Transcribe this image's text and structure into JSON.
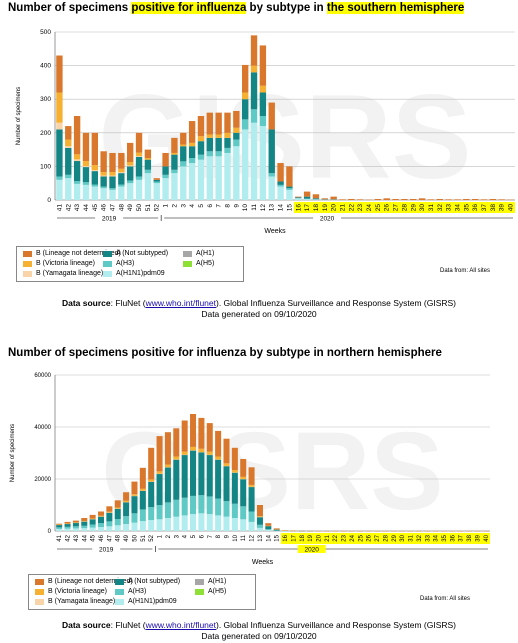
{
  "colors": {
    "b_lineage_not_determined": "#d9772c",
    "b_victoria": "#f6b132",
    "b_yamagata": "#f9d4a8",
    "a_not_subtyped": "#138585",
    "a_h3": "#5fc9c5",
    "a_h1n1pdm09": "#b1ecee",
    "a_h1": "#a6a6a6",
    "a_h5": "#8ee037",
    "highlight": "#ffff00"
  },
  "charts": [
    {
      "title_pre": "Number of specimens ",
      "title_hl1": "positive for influenza",
      "title_mid": " by subtype in ",
      "title_hl2": "the southern hemisphere",
      "title_post": "",
      "watermark": "GISRS",
      "data_from": "Data from: All sites",
      "year_left": "2019",
      "year_right": "2020",
      "xlabel": "Weeks",
      "source_label": "Data source",
      "source_pre": ": FluNet (",
      "source_link": "www.who.int/flunet",
      "source_post": "). Global Influenza Surveillance and Response System (GISRS)",
      "generated": "Data generated on 09/10/2020"
    },
    {
      "title_pre": "Number of specimens positive for influenza by subtype in northern hemisphere",
      "title_hl1": "",
      "title_mid": "",
      "title_hl2": "",
      "title_post": "",
      "watermark": "GISRS",
      "data_from": "Data from: All sites",
      "year_left": "2019",
      "year_right": "2020",
      "xlabel": "Weeks",
      "source_label": "Data source",
      "source_pre": ": FluNet (",
      "source_link": "www.who.int/flunet",
      "source_post": "). Global Influenza Surveillance and Response System (GISRS)",
      "generated": "Data generated on 09/10/2020"
    }
  ],
  "legend": [
    {
      "key": "b_lineage_not_determined",
      "label": "B (Lineage not determined)"
    },
    {
      "key": "a_not_subtyped",
      "label": "A (Not subtyped)"
    },
    {
      "key": "a_h1",
      "label": "A(H1)"
    },
    {
      "key": "b_victoria",
      "label": "B (Victoria lineage)"
    },
    {
      "key": "a_h3",
      "label": "A(H3)"
    },
    {
      "key": "a_h5",
      "label": "A(H5)"
    },
    {
      "key": "b_yamagata",
      "label": "B (Yamagata lineage)"
    },
    {
      "key": "a_h1n1pdm09",
      "label": "A(H1N1)pdm09"
    }
  ],
  "chart_data": [
    {
      "type": "bar",
      "stacked": true,
      "xlabel": "Weeks",
      "ylabel": "Number of specimens",
      "ylim": [
        0,
        500
      ],
      "yticks": [
        0,
        100,
        200,
        300,
        400,
        500
      ],
      "highlight_from_week": "16",
      "highlight_to_week": "40",
      "categories": [
        "41",
        "42",
        "43",
        "44",
        "45",
        "46",
        "47",
        "48",
        "49",
        "50",
        "51",
        "52",
        "1",
        "2",
        "3",
        "4",
        "5",
        "6",
        "7",
        "8",
        "9",
        "10",
        "11",
        "12",
        "13",
        "14",
        "15",
        "16",
        "17",
        "18",
        "19",
        "20",
        "21",
        "22",
        "23",
        "24",
        "25",
        "26",
        "27",
        "28",
        "29",
        "30",
        "31",
        "32",
        "33",
        "34",
        "35",
        "36",
        "37",
        "38",
        "39",
        "40"
      ],
      "series": [
        {
          "name": "A(H1N1)pdm09",
          "key": "a_h1n1pdm09",
          "values": [
            60,
            65,
            48,
            45,
            40,
            35,
            30,
            40,
            50,
            60,
            80,
            50,
            65,
            80,
            100,
            110,
            120,
            130,
            130,
            140,
            160,
            210,
            230,
            220,
            70,
            40,
            30,
            5,
            3,
            2,
            1,
            1,
            0,
            0,
            0,
            0,
            0,
            0,
            0,
            0,
            0,
            0,
            0,
            0,
            0,
            0,
            0,
            0,
            0,
            0,
            0,
            0
          ]
        },
        {
          "name": "A(H3)",
          "key": "a_h3",
          "values": [
            10,
            10,
            8,
            8,
            6,
            5,
            5,
            6,
            8,
            10,
            10,
            5,
            10,
            10,
            15,
            15,
            15,
            15,
            15,
            15,
            20,
            30,
            40,
            30,
            10,
            5,
            5,
            1,
            1,
            0,
            0,
            0,
            0,
            0,
            0,
            0,
            0,
            0,
            0,
            0,
            0,
            0,
            0,
            0,
            0,
            0,
            0,
            0,
            0,
            0,
            0,
            0
          ]
        },
        {
          "name": "A (Not subtyped)",
          "key": "a_not_subtyped",
          "values": [
            140,
            80,
            60,
            45,
            40,
            30,
            35,
            34,
            42,
            58,
            30,
            5,
            25,
            45,
            45,
            35,
            40,
            40,
            40,
            30,
            20,
            60,
            110,
            70,
            130,
            10,
            5,
            2,
            6,
            3,
            1,
            1,
            0,
            0,
            0,
            0,
            0,
            0,
            0,
            0,
            0,
            0,
            0,
            0,
            0,
            0,
            0,
            0,
            0,
            0,
            0,
            0
          ]
        },
        {
          "name": "A(H1)",
          "key": "a_h1",
          "values": [
            0,
            0,
            0,
            0,
            0,
            0,
            0,
            0,
            0,
            0,
            0,
            0,
            0,
            0,
            0,
            0,
            0,
            0,
            0,
            0,
            0,
            0,
            0,
            0,
            0,
            0,
            0,
            0,
            0,
            0,
            0,
            0,
            0,
            0,
            0,
            0,
            0,
            0,
            0,
            0,
            0,
            0,
            0,
            0,
            0,
            0,
            0,
            0,
            0,
            0,
            0,
            0
          ]
        },
        {
          "name": "A(H5)",
          "key": "a_h5",
          "values": [
            0,
            0,
            0,
            0,
            0,
            0,
            0,
            0,
            0,
            0,
            0,
            0,
            0,
            0,
            0,
            0,
            0,
            0,
            0,
            0,
            0,
            0,
            0,
            0,
            0,
            0,
            0,
            0,
            0,
            0,
            0,
            0,
            0,
            0,
            0,
            0,
            0,
            0,
            0,
            0,
            0,
            0,
            0,
            0,
            0,
            0,
            0,
            0,
            0,
            0,
            0,
            0
          ]
        },
        {
          "name": "B (Yamagata lineage)",
          "key": "b_yamagata",
          "values": [
            20,
            5,
            5,
            3,
            3,
            3,
            3,
            3,
            3,
            3,
            0,
            0,
            0,
            0,
            0,
            0,
            0,
            0,
            0,
            0,
            0,
            0,
            0,
            0,
            0,
            0,
            0,
            0,
            0,
            0,
            0,
            0,
            0,
            0,
            0,
            0,
            0,
            0,
            0,
            0,
            0,
            0,
            0,
            0,
            0,
            0,
            0,
            0,
            0,
            0,
            0,
            0
          ]
        },
        {
          "name": "B (Victoria lineage)",
          "key": "b_victoria",
          "values": [
            90,
            20,
            15,
            15,
            15,
            10,
            10,
            10,
            10,
            10,
            5,
            0,
            0,
            5,
            5,
            10,
            15,
            10,
            10,
            15,
            15,
            20,
            20,
            20,
            0,
            0,
            0,
            0,
            0,
            0,
            0,
            0,
            0,
            0,
            0,
            0,
            0,
            0,
            0,
            0,
            0,
            0,
            0,
            0,
            0,
            0,
            0,
            0,
            0,
            0,
            0,
            0
          ]
        },
        {
          "name": "B (Lineage not determined)",
          "key": "b_lineage_not_determined",
          "values": [
            110,
            40,
            114,
            84,
            96,
            62,
            57,
            47,
            57,
            59,
            25,
            5,
            40,
            45,
            35,
            65,
            60,
            65,
            65,
            60,
            50,
            82,
            90,
            120,
            80,
            55,
            60,
            2,
            15,
            12,
            3,
            8,
            2,
            3,
            2,
            1,
            3,
            5,
            3,
            3,
            3,
            5,
            2,
            3,
            2,
            2,
            3,
            3,
            2,
            3,
            2,
            1
          ]
        }
      ]
    },
    {
      "type": "bar",
      "stacked": true,
      "xlabel": "Weeks",
      "ylabel": "Number of specimens",
      "ylim": [
        0,
        60000
      ],
      "yticks": [
        0,
        20000,
        40000,
        60000
      ],
      "highlight_from_week": "16",
      "highlight_to_week": "40",
      "categories": [
        "41",
        "42",
        "43",
        "44",
        "45",
        "46",
        "47",
        "48",
        "49",
        "50",
        "51",
        "52",
        "1",
        "2",
        "3",
        "4",
        "5",
        "6",
        "7",
        "8",
        "9",
        "10",
        "11",
        "12",
        "13",
        "14",
        "15",
        "16",
        "17",
        "18",
        "19",
        "20",
        "21",
        "22",
        "23",
        "24",
        "25",
        "26",
        "27",
        "28",
        "29",
        "30",
        "31",
        "32",
        "33",
        "34",
        "35",
        "36",
        "37",
        "38",
        "39",
        "40"
      ],
      "series": [
        {
          "name": "A(H1N1)pdm09",
          "key": "a_h1n1pdm09",
          "values": [
            800,
            900,
            1000,
            1100,
            1300,
            1500,
            1800,
            2200,
            2700,
            3200,
            3800,
            4200,
            4500,
            5000,
            5500,
            6000,
            6500,
            6800,
            6500,
            6000,
            5500,
            5000,
            4500,
            3500,
            1200,
            400,
            100,
            20,
            10,
            5,
            5,
            0,
            0,
            0,
            0,
            0,
            0,
            0,
            0,
            0,
            0,
            0,
            0,
            0,
            0,
            0,
            0,
            0,
            0,
            0,
            0,
            0
          ]
        },
        {
          "name": "A(H3)",
          "key": "a_h3",
          "values": [
            600,
            700,
            800,
            900,
            1200,
            1500,
            1900,
            2400,
            3000,
            3600,
            4500,
            5000,
            5500,
            6000,
            6500,
            6800,
            7000,
            7000,
            6800,
            6500,
            6000,
            5500,
            5000,
            4000,
            1200,
            300,
            100,
            20,
            10,
            5,
            0,
            0,
            0,
            0,
            0,
            0,
            0,
            0,
            0,
            0,
            0,
            0,
            0,
            0,
            0,
            0,
            0,
            0,
            0,
            0,
            0,
            0
          ]
        },
        {
          "name": "A (Not subtyped)",
          "key": "a_not_subtyped",
          "values": [
            1000,
            1200,
            1400,
            1700,
            2100,
            2600,
            3400,
            4000,
            5400,
            6700,
            7200,
            9800,
            12000,
            13500,
            15500,
            16500,
            17500,
            16500,
            16000,
            15000,
            13500,
            12000,
            10500,
            9500,
            3000,
            1200,
            400,
            100,
            40,
            20,
            10,
            0,
            0,
            0,
            0,
            0,
            0,
            0,
            0,
            0,
            0,
            0,
            0,
            0,
            0,
            0,
            0,
            0,
            0,
            0,
            0,
            0
          ]
        },
        {
          "name": "A(H1)",
          "key": "a_h1",
          "values": [
            0,
            0,
            0,
            0,
            0,
            0,
            0,
            0,
            0,
            0,
            0,
            0,
            0,
            0,
            0,
            0,
            0,
            0,
            0,
            0,
            0,
            0,
            0,
            0,
            0,
            0,
            0,
            0,
            0,
            0,
            0,
            0,
            0,
            0,
            0,
            0,
            0,
            0,
            0,
            0,
            0,
            0,
            0,
            0,
            0,
            0,
            0,
            0,
            0,
            0,
            0,
            0
          ]
        },
        {
          "name": "A(H5)",
          "key": "a_h5",
          "values": [
            0,
            0,
            0,
            0,
            0,
            0,
            0,
            0,
            0,
            0,
            0,
            0,
            0,
            0,
            0,
            0,
            0,
            0,
            0,
            0,
            0,
            0,
            0,
            0,
            0,
            0,
            0,
            0,
            0,
            0,
            0,
            0,
            0,
            0,
            0,
            0,
            0,
            0,
            0,
            0,
            0,
            0,
            0,
            0,
            0,
            0,
            0,
            0,
            0,
            0,
            0,
            0
          ]
        },
        {
          "name": "B (Yamagata lineage)",
          "key": "b_yamagata",
          "values": [
            10,
            10,
            10,
            10,
            20,
            20,
            20,
            20,
            30,
            30,
            30,
            30,
            40,
            40,
            40,
            40,
            40,
            40,
            40,
            30,
            30,
            30,
            20,
            20,
            10,
            0,
            0,
            0,
            0,
            0,
            0,
            0,
            0,
            0,
            0,
            0,
            0,
            0,
            0,
            0,
            0,
            0,
            0,
            0,
            0,
            0,
            0,
            0,
            0,
            0,
            0,
            0
          ]
        },
        {
          "name": "B (Victoria lineage)",
          "key": "b_victoria",
          "values": [
            100,
            100,
            100,
            150,
            200,
            250,
            300,
            400,
            500,
            600,
            700,
            800,
            900,
            1000,
            1100,
            1200,
            1300,
            1300,
            1200,
            1100,
            1000,
            900,
            800,
            700,
            300,
            100,
            50,
            10,
            5,
            0,
            0,
            0,
            0,
            0,
            0,
            0,
            0,
            0,
            0,
            0,
            0,
            0,
            0,
            0,
            0,
            0,
            0,
            0,
            0,
            0,
            0,
            0
          ]
        },
        {
          "name": "B (Lineage not determined)",
          "key": "b_lineage_not_determined",
          "values": [
            290,
            590,
            690,
            1140,
            1380,
            1630,
            2080,
            2780,
            3270,
            4870,
            8070,
            12170,
            13560,
            12460,
            10860,
            11960,
            12660,
            11860,
            10960,
            9870,
            9470,
            8570,
            6880,
            6780,
            4290,
            1000,
            350,
            100,
            50,
            20,
            10,
            10,
            5,
            5,
            5,
            5,
            5,
            5,
            5,
            5,
            5,
            5,
            5,
            5,
            5,
            5,
            5,
            5,
            5,
            5,
            5,
            5
          ]
        }
      ]
    }
  ]
}
